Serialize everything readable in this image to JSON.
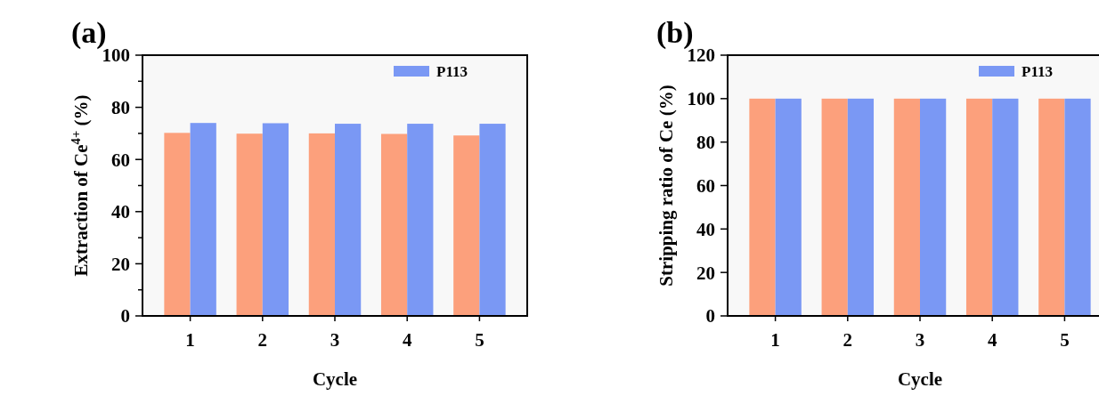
{
  "chart_data": [
    {
      "type": "bar",
      "annotations": [
        "(a)"
      ],
      "xlabel": "Cycle",
      "ylabel": "Extraction of Ce$^{4+}$ (%)",
      "categories": [
        "1",
        "2",
        "3",
        "4",
        "5"
      ],
      "series": [
        {
          "color": "#fca07c",
          "values": [
            70.2,
            69.9,
            70.0,
            69.8,
            69.2
          ]
        },
        {
          "name": "P113",
          "color": "#7a98f4",
          "values": [
            74.0,
            73.9,
            73.7,
            73.7,
            73.7
          ]
        }
      ],
      "ylim": [
        0,
        100
      ],
      "yticks": [
        0,
        {
          "value": 10,
          "label": null
        },
        20,
        {
          "value": 30,
          "label": null
        },
        40,
        {
          "value": 50,
          "label": null
        },
        60,
        {
          "value": 70,
          "label": null
        },
        80,
        {
          "value": 90,
          "label": null
        },
        100
      ],
      "legend": "top right"
    },
    {
      "type": "bar",
      "annotations": [
        "(b)"
      ],
      "xlabel": "Cycle",
      "ylabel": "Stripping ratio of Ce (%)",
      "categories": [
        "1",
        "2",
        "3",
        "4",
        "5"
      ],
      "series": [
        {
          "color": "#fca07c",
          "values": [
            100,
            100,
            100,
            100,
            100
          ]
        },
        {
          "name": "P113",
          "color": "#7a98f4",
          "values": [
            100,
            100,
            100,
            100,
            100
          ]
        }
      ],
      "ylim": [
        0,
        120
      ],
      "yticks": [
        0,
        20,
        40,
        60,
        80,
        100,
        120
      ],
      "legend": "top right"
    }
  ]
}
